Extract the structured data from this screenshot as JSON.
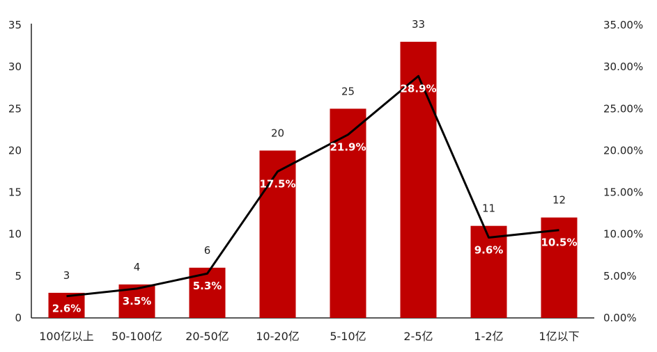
{
  "chart_data": {
    "type": "bar",
    "categories": [
      "100亿以上",
      "50-100亿",
      "20-50亿",
      "10-20亿",
      "5-10亿",
      "2-5亿",
      "1-2亿",
      "1亿以下"
    ],
    "series": [
      {
        "type": "bar",
        "axis": "left",
        "values": [
          3,
          4,
          6,
          20,
          25,
          33,
          11,
          12
        ],
        "labels": [
          "3",
          "4",
          "6",
          "20",
          "25",
          "33",
          "11",
          "12"
        ],
        "color": "#C00000"
      },
      {
        "type": "line",
        "axis": "right",
        "values": [
          0.026,
          0.035,
          0.053,
          0.175,
          0.219,
          0.289,
          0.096,
          0.105
        ],
        "labels": [
          "2.6%",
          "3.5%",
          "5.3%",
          "17.5%",
          "21.9%",
          "28.9%",
          "9.6%",
          "10.5%"
        ],
        "color": "#000000"
      }
    ],
    "y_left": {
      "ylim": [
        0,
        35
      ],
      "ticks": [
        "0",
        "5",
        "10",
        "15",
        "20",
        "25",
        "30",
        "35"
      ]
    },
    "y_right": {
      "ylim": [
        0,
        0.35
      ],
      "ticks": [
        "0.00%",
        "5.00%",
        "10.00%",
        "15.00%",
        "20.00%",
        "25.00%",
        "30.00%",
        "35.00%"
      ]
    },
    "grid": false,
    "legend": "none",
    "title": "",
    "xlabel": "",
    "ylabel": ""
  }
}
